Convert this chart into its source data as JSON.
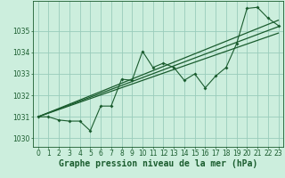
{
  "background_color": "#cceedd",
  "plot_bg_color": "#cceedd",
  "grid_color": "#99ccbb",
  "line_color": "#1a5c2e",
  "ylim": [
    1029.6,
    1036.4
  ],
  "xlim": [
    -0.5,
    23.5
  ],
  "yticks": [
    1030,
    1031,
    1032,
    1033,
    1034,
    1035
  ],
  "xticks": [
    0,
    1,
    2,
    3,
    4,
    5,
    6,
    7,
    8,
    9,
    10,
    11,
    12,
    13,
    14,
    15,
    16,
    17,
    18,
    19,
    20,
    21,
    22,
    23
  ],
  "xlabel": "Graphe pression niveau de la mer (hPa)",
  "series1_x": [
    0,
    1,
    2,
    3,
    4,
    5,
    6,
    7,
    8,
    9,
    10,
    11,
    12,
    13,
    14,
    15,
    16,
    17,
    18,
    19,
    20,
    21,
    22,
    23
  ],
  "series1_y": [
    1031.0,
    1031.0,
    1030.85,
    1030.8,
    1030.8,
    1030.35,
    1031.5,
    1031.5,
    1032.75,
    1032.7,
    1034.05,
    1033.3,
    1033.5,
    1033.3,
    1032.7,
    1033.0,
    1032.35,
    1032.9,
    1033.3,
    1034.4,
    1036.05,
    1036.1,
    1035.6,
    1035.25
  ],
  "trend1_x": [
    0,
    23
  ],
  "trend1_y": [
    1031.0,
    1035.2
  ],
  "trend2_x": [
    0,
    23
  ],
  "trend2_y": [
    1031.0,
    1035.5
  ],
  "trend3_x": [
    0,
    23
  ],
  "trend3_y": [
    1031.0,
    1034.9
  ],
  "title_fontsize": 7,
  "tick_fontsize": 5.5
}
